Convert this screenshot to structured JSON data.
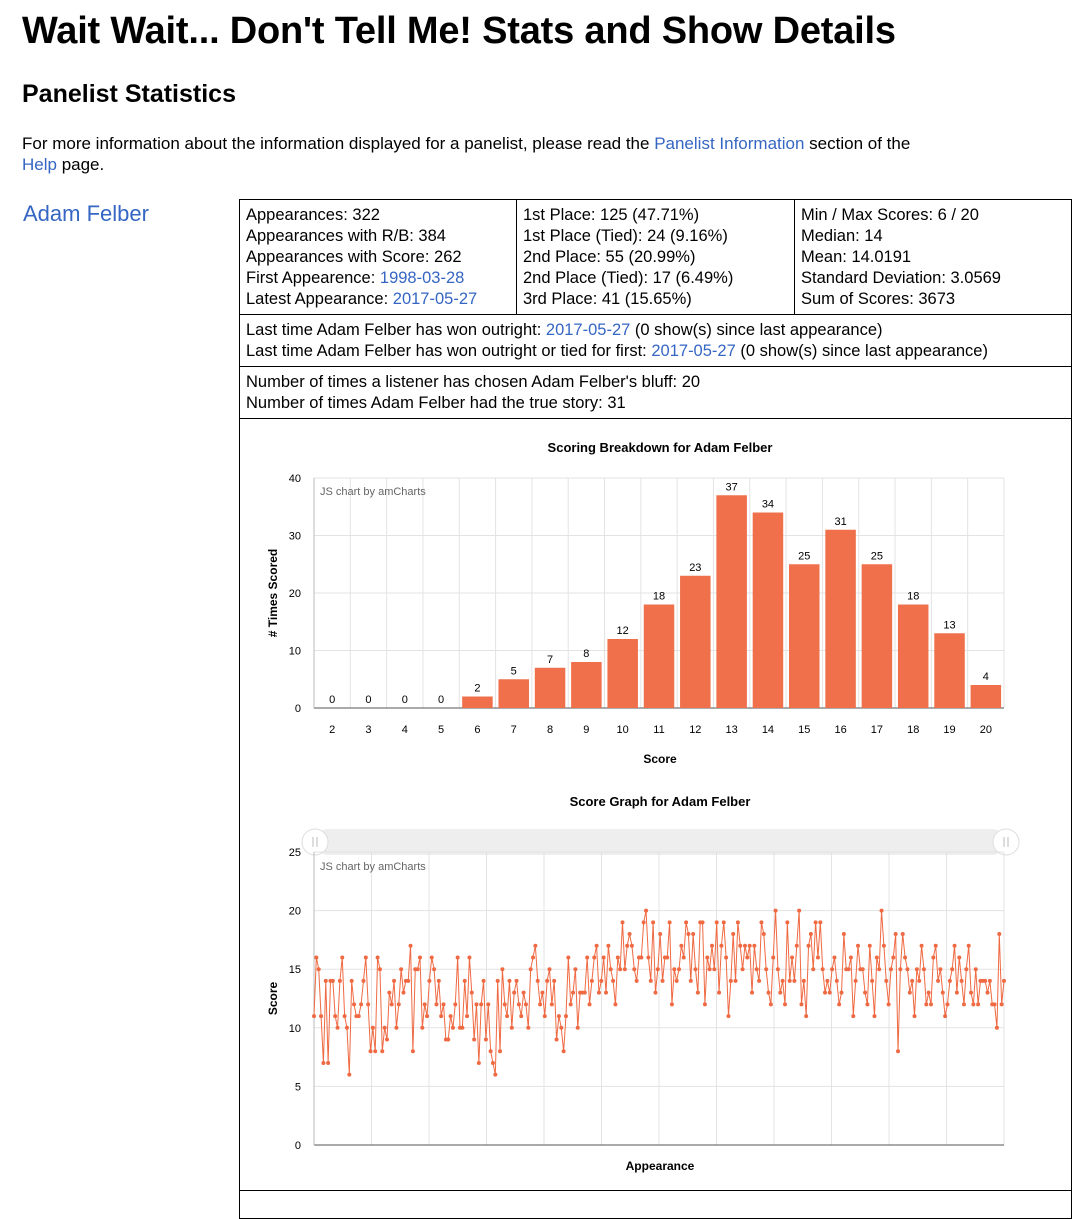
{
  "header": {
    "title": "Wait Wait... Don't Tell Me! Stats and Show Details",
    "subtitle": "Panelist Statistics"
  },
  "intro": {
    "text_before": "For more information about the information displayed for a panelist, please read the ",
    "link1": "Panelist Information",
    "text_middle": " section of the ",
    "link2": "Help",
    "text_after": " page."
  },
  "panelist": {
    "name": "Adam Felber",
    "appearances": "Appearances: 322",
    "appearances_rb": "Appearances with R/B: 384",
    "appearances_score": "Appearances with Score: 262",
    "first_label": "First Appearence: ",
    "first_date": "1998-03-28",
    "latest_label": "Latest Appearance: ",
    "latest_date": "2017-05-27",
    "first_place": "1st Place: 125 (47.71%)",
    "first_tied": "1st Place (Tied): 24 (9.16%)",
    "second_place": "2nd Place: 55 (20.99%)",
    "second_tied": "2nd Place (Tied): 17 (6.49%)",
    "third_place": "3rd Place: 41 (15.65%)",
    "minmax": "Min / Max Scores: 6 / 20",
    "median": "Median: 14",
    "mean": "Mean: 14.0191",
    "stdev": "Standard Deviation: 3.0569",
    "sum": "Sum of Scores: 3673",
    "won_outright_label": "Last time Adam Felber has won outright: ",
    "won_outright_date": "2017-05-27",
    "won_outright_suffix": " (0 show(s) since last appearance)",
    "won_tied_label": "Last time Adam Felber has won outright or tied for first: ",
    "won_tied_date": "2017-05-27",
    "won_tied_suffix": " (0 show(s) since last appearance)",
    "bluff": "Number of times a listener has chosen Adam Felber's bluff: 20",
    "true_story": "Number of times Adam Felber had the true story: 31"
  },
  "colors": {
    "bar": "#f0704c",
    "line": "#ef6a43",
    "link": "#3566c3",
    "grid": "#e3e3e3"
  },
  "chart_data": [
    {
      "type": "bar",
      "title": "Scoring Breakdown for Adam Felber",
      "credit": "JS chart by amCharts",
      "xlabel": "Score",
      "ylabel": "# Times Scored",
      "ylim": [
        0,
        40
      ],
      "yticks": [
        "0",
        "10",
        "20",
        "30",
        "40"
      ],
      "grid": true,
      "categories": [
        "2",
        "3",
        "4",
        "5",
        "6",
        "7",
        "8",
        "9",
        "10",
        "11",
        "12",
        "13",
        "14",
        "15",
        "16",
        "17",
        "18",
        "19",
        "20"
      ],
      "values": [
        0,
        0,
        0,
        0,
        2,
        5,
        7,
        8,
        12,
        18,
        23,
        37,
        34,
        25,
        31,
        25,
        18,
        13,
        4
      ]
    },
    {
      "type": "line",
      "title": "Score Graph for Adam Felber",
      "credit": "JS chart by amCharts",
      "xlabel": "Appearance",
      "ylabel": "Score",
      "ylim": [
        0,
        25
      ],
      "yticks": [
        "0",
        "5",
        "10",
        "15",
        "20",
        "25"
      ],
      "grid": true,
      "scrollbar": true,
      "values": [
        11,
        16,
        15,
        11,
        7,
        14,
        7,
        14,
        14,
        11,
        10,
        14,
        16,
        11,
        10,
        6,
        14,
        12,
        11,
        11,
        12,
        14,
        16,
        12,
        8,
        10,
        8,
        16,
        15,
        8,
        10,
        9,
        13,
        12,
        14,
        10,
        12,
        15,
        13,
        14,
        14,
        17,
        8,
        15,
        15,
        16,
        10,
        12,
        11,
        14,
        16,
        15,
        12,
        14,
        11,
        12,
        9,
        9,
        11,
        10,
        12,
        16,
        10,
        10,
        14,
        11,
        16,
        13,
        9,
        12,
        7,
        12,
        14,
        9,
        12,
        8,
        7,
        6,
        14,
        8,
        15,
        12,
        11,
        14,
        10,
        13,
        14,
        12,
        11,
        13,
        12,
        10,
        15,
        16,
        17,
        14,
        12,
        13,
        11,
        14,
        15,
        12,
        14,
        9,
        11,
        10,
        8,
        11,
        16,
        12,
        13,
        15,
        10,
        13,
        13,
        13,
        16,
        12,
        14,
        16,
        17,
        13,
        14,
        16,
        13,
        17,
        15,
        14,
        12,
        16,
        15,
        19,
        15,
        17,
        18,
        17,
        15,
        14,
        16,
        16,
        19,
        20,
        16,
        14,
        19,
        13,
        15,
        18,
        14,
        16,
        16,
        19,
        12,
        15,
        14,
        15,
        17,
        16,
        19,
        18,
        14,
        18,
        15,
        13,
        19,
        19,
        12,
        16,
        15,
        17,
        15,
        19,
        13,
        17,
        19,
        16,
        11,
        14,
        18,
        14,
        19,
        17,
        15,
        17,
        16,
        17,
        13,
        17,
        15,
        14,
        19,
        18,
        15,
        13,
        12,
        16,
        20,
        15,
        13,
        14,
        12,
        19,
        14,
        16,
        14,
        17,
        20,
        12,
        14,
        11,
        17,
        18,
        15,
        19,
        16,
        19,
        15,
        13,
        14,
        13,
        15,
        16,
        14,
        12,
        13,
        18,
        15,
        15,
        16,
        11,
        14,
        17,
        15,
        15,
        13,
        12,
        17,
        14,
        11,
        16,
        15,
        20,
        17,
        14,
        12,
        15,
        16,
        18,
        8,
        15,
        18,
        16,
        15,
        13,
        14,
        11,
        15,
        14,
        17,
        15,
        12,
        13,
        12,
        16,
        17,
        14,
        15,
        13,
        11,
        12,
        14,
        15,
        17,
        13,
        16,
        14,
        12,
        15,
        17,
        13,
        12,
        15,
        12,
        14,
        14,
        14,
        13,
        14,
        12,
        12,
        10,
        18,
        12,
        14
      ]
    }
  ]
}
